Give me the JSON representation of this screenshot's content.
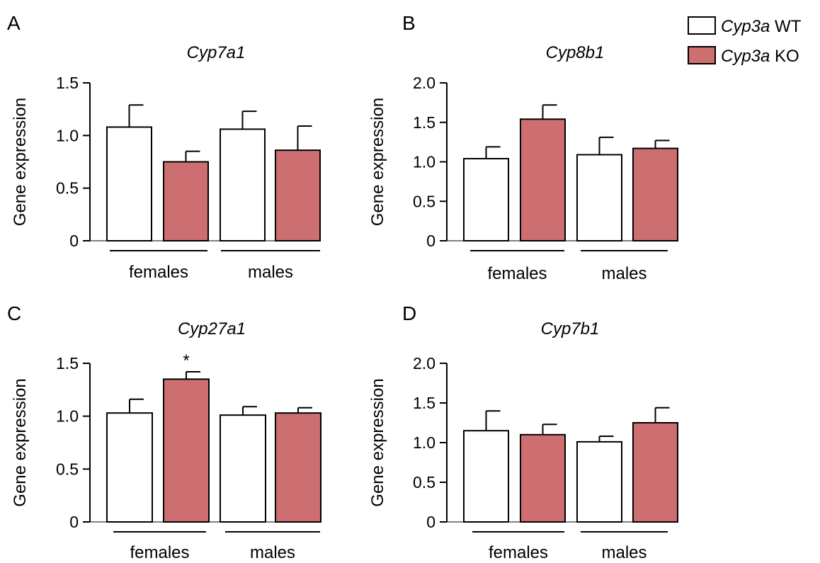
{
  "legend": {
    "items": [
      {
        "italic": "Cyp3a",
        "text": " WT",
        "color": "#ffffff"
      },
      {
        "italic": "Cyp3a",
        "text": " KO",
        "color": "#cd6f71"
      }
    ]
  },
  "colors": {
    "wt": "#ffffff",
    "ko": "#cd6f71",
    "stroke": "#000000"
  },
  "chart_data": [
    {
      "panel": "A",
      "type": "bar",
      "title": "Cyp7a1",
      "ylabel": "Gene expression",
      "ylim": [
        0,
        1.5
      ],
      "yticks": [
        "0",
        "0.5",
        "1.0",
        "1.5"
      ],
      "groups": [
        "females",
        "males"
      ],
      "series": [
        {
          "name": "Cyp3a WT",
          "values": [
            1.08,
            1.06
          ],
          "errors": [
            0.21,
            0.17
          ]
        },
        {
          "name": "Cyp3a KO",
          "values": [
            0.75,
            0.86
          ],
          "errors": [
            0.1,
            0.23
          ]
        }
      ],
      "annotations": []
    },
    {
      "panel": "B",
      "type": "bar",
      "title": "Cyp8b1",
      "ylabel": "Gene expression",
      "ylim": [
        0,
        2.0
      ],
      "yticks": [
        "0",
        "0.5",
        "1.0",
        "1.5",
        "2.0"
      ],
      "groups": [
        "females",
        "males"
      ],
      "series": [
        {
          "name": "Cyp3a WT",
          "values": [
            1.04,
            1.09
          ],
          "errors": [
            0.15,
            0.22
          ]
        },
        {
          "name": "Cyp3a KO",
          "values": [
            1.54,
            1.17
          ],
          "errors": [
            0.18,
            0.1
          ]
        }
      ],
      "annotations": []
    },
    {
      "panel": "C",
      "type": "bar",
      "title": "Cyp27a1",
      "ylabel": "Gene expression",
      "ylim": [
        0,
        1.5
      ],
      "yticks": [
        "0",
        "0.5",
        "1.0",
        "1.5"
      ],
      "groups": [
        "females",
        "males"
      ],
      "series": [
        {
          "name": "Cyp3a WT",
          "values": [
            1.03,
            1.01
          ],
          "errors": [
            0.13,
            0.08
          ]
        },
        {
          "name": "Cyp3a KO",
          "values": [
            1.35,
            1.03
          ],
          "errors": [
            0.07,
            0.05
          ]
        }
      ],
      "annotations": [
        {
          "text": "*",
          "group": 0,
          "series": 1
        }
      ]
    },
    {
      "panel": "D",
      "type": "bar",
      "title": "Cyp7b1",
      "ylabel": "Gene expression",
      "ylim": [
        0,
        2.0
      ],
      "yticks": [
        "0",
        "0.5",
        "1.0",
        "1.5",
        "2.0"
      ],
      "groups": [
        "females",
        "males"
      ],
      "series": [
        {
          "name": "Cyp3a WT",
          "values": [
            1.15,
            1.01
          ],
          "errors": [
            0.25,
            0.07
          ]
        },
        {
          "name": "Cyp3a KO",
          "values": [
            1.1,
            1.25
          ],
          "errors": [
            0.13,
            0.19
          ]
        }
      ],
      "annotations": []
    }
  ]
}
